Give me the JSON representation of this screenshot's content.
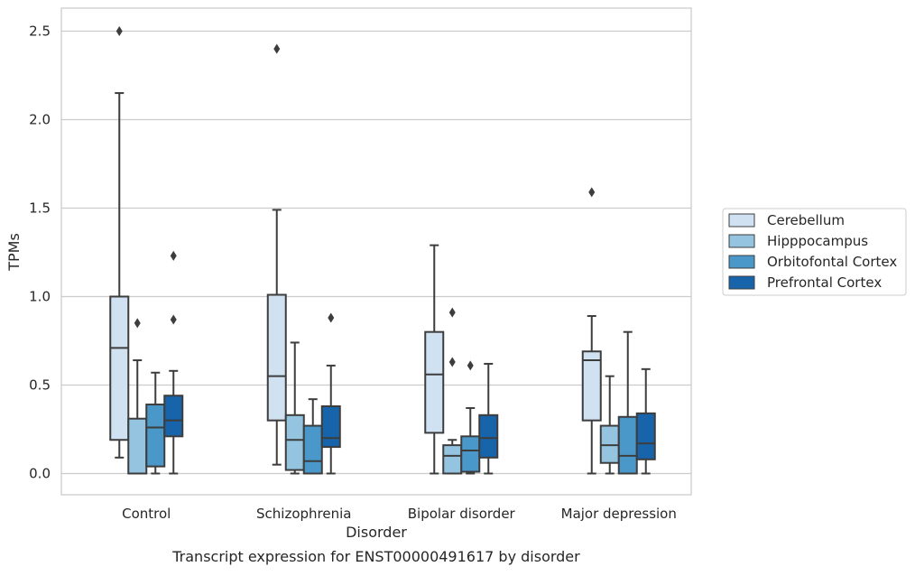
{
  "caption": "Transcript expression for ENST00000491617 by disorder",
  "colors": {
    "grid": "#cccccc",
    "frame": "#cccccc",
    "line": "#3d3d3d",
    "background": "#ffffff"
  },
  "chart_data": {
    "type": "boxplot",
    "xlabel": "Disorder",
    "ylabel": "TPMs",
    "ylim": [
      -0.12,
      2.63
    ],
    "yticks": [
      "0.0",
      "0.5",
      "1.0",
      "1.5",
      "2.0",
      "2.5"
    ],
    "ytick_values": [
      0,
      0.5,
      1.0,
      1.5,
      2.0,
      2.5
    ],
    "grid": "horizontal",
    "legend_position": "center-right",
    "categories": [
      "Control",
      "Schizophrenia",
      "Bipolar disorder",
      "Major depression"
    ],
    "series": [
      {
        "name": "Cerebellum",
        "color": "#d0e1f2",
        "boxes": [
          {
            "whisker_low": 0.09,
            "q1": 0.19,
            "median": 0.71,
            "q3": 1.0,
            "whisker_high": 2.15,
            "outliers": [
              2.5
            ]
          },
          {
            "whisker_low": 0.05,
            "q1": 0.3,
            "median": 0.55,
            "q3": 1.01,
            "whisker_high": 1.49,
            "outliers": [
              2.4
            ]
          },
          {
            "whisker_low": 0.0,
            "q1": 0.23,
            "median": 0.56,
            "q3": 0.8,
            "whisker_high": 1.29,
            "outliers": []
          },
          {
            "whisker_low": 0.0,
            "q1": 0.3,
            "median": 0.64,
            "q3": 0.69,
            "whisker_high": 0.89,
            "outliers": [
              1.59
            ]
          }
        ]
      },
      {
        "name": "Hipppocampus",
        "color": "#94c4df",
        "boxes": [
          {
            "whisker_low": 0.0,
            "q1": 0.0,
            "median": 0.0,
            "q3": 0.31,
            "whisker_high": 0.64,
            "outliers": [
              0.85
            ]
          },
          {
            "whisker_low": 0.0,
            "q1": 0.02,
            "median": 0.19,
            "q3": 0.33,
            "whisker_high": 0.74,
            "outliers": []
          },
          {
            "whisker_low": 0.0,
            "q1": 0.0,
            "median": 0.1,
            "q3": 0.16,
            "whisker_high": 0.19,
            "outliers": [
              0.63,
              0.91
            ]
          },
          {
            "whisker_low": 0.0,
            "q1": 0.06,
            "median": 0.16,
            "q3": 0.27,
            "whisker_high": 0.55,
            "outliers": []
          }
        ]
      },
      {
        "name": "Orbitofontal Cortex",
        "color": "#4a98c9",
        "boxes": [
          {
            "whisker_low": 0.0,
            "q1": 0.04,
            "median": 0.26,
            "q3": 0.39,
            "whisker_high": 0.57,
            "outliers": []
          },
          {
            "whisker_low": 0.0,
            "q1": 0.0,
            "median": 0.07,
            "q3": 0.27,
            "whisker_high": 0.42,
            "outliers": []
          },
          {
            "whisker_low": 0.0,
            "q1": 0.01,
            "median": 0.13,
            "q3": 0.21,
            "whisker_high": 0.37,
            "outliers": [
              0.61
            ]
          },
          {
            "whisker_low": 0.0,
            "q1": 0.0,
            "median": 0.1,
            "q3": 0.32,
            "whisker_high": 0.8,
            "outliers": []
          }
        ]
      },
      {
        "name": "Prefrontal Cortex",
        "color": "#1764ab",
        "boxes": [
          {
            "whisker_low": 0.0,
            "q1": 0.21,
            "median": 0.3,
            "q3": 0.44,
            "whisker_high": 0.58,
            "outliers": [
              0.87,
              1.23
            ]
          },
          {
            "whisker_low": 0.0,
            "q1": 0.15,
            "median": 0.2,
            "q3": 0.38,
            "whisker_high": 0.61,
            "outliers": [
              0.88
            ]
          },
          {
            "whisker_low": 0.0,
            "q1": 0.09,
            "median": 0.2,
            "q3": 0.33,
            "whisker_high": 0.62,
            "outliers": []
          },
          {
            "whisker_low": 0.0,
            "q1": 0.08,
            "median": 0.17,
            "q3": 0.34,
            "whisker_high": 0.59,
            "outliers": []
          }
        ]
      }
    ]
  }
}
